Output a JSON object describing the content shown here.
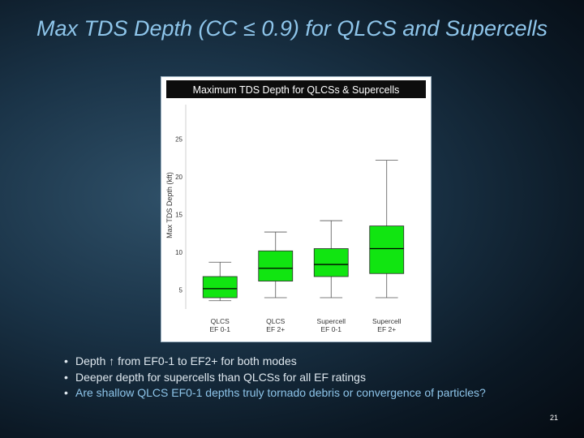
{
  "slide": {
    "title": "Max TDS Depth (CC ≤ 0.9) for QLCS and Supercells",
    "bullets": [
      "Depth ↑ from EF0-1 to EF2+ for both modes",
      "Deeper depth for supercells than QLCSs for all EF ratings",
      "Are shallow QLCS EF0-1 depths truly tornado debris or convergence of particles?"
    ],
    "page_number": "21"
  },
  "chart_data": {
    "type": "box",
    "title": "Maximum TDS Depth for QLCSs & Supercells",
    "xlabel": "",
    "ylabel": "Max TDS Depth (kft)",
    "ylim": [
      2.5,
      30
    ],
    "yticks": [
      5,
      10,
      15,
      20,
      25
    ],
    "grid": false,
    "box_color": "#11e511",
    "categories": [
      [
        "QLCS",
        "EF 0-1"
      ],
      [
        "QLCS",
        "EF 2+"
      ],
      [
        "Supercell",
        "EF 0-1"
      ],
      [
        "Supercell",
        "EF 2+"
      ]
    ],
    "boxes": [
      {
        "whisker_low": 3.6,
        "q1": 4.0,
        "median": 5.2,
        "q3": 6.8,
        "whisker_high": 8.7,
        "outliers": []
      },
      {
        "whisker_low": 4.0,
        "q1": 6.2,
        "median": 7.9,
        "q3": 10.2,
        "whisker_high": 12.7,
        "outliers": []
      },
      {
        "whisker_low": 4.0,
        "q1": 6.8,
        "median": 8.4,
        "q3": 10.5,
        "whisker_high": 14.2,
        "outliers": []
      },
      {
        "whisker_low": 4.0,
        "q1": 7.2,
        "median": 10.5,
        "q3": 13.5,
        "whisker_high": 22.2,
        "outliers": []
      }
    ]
  }
}
